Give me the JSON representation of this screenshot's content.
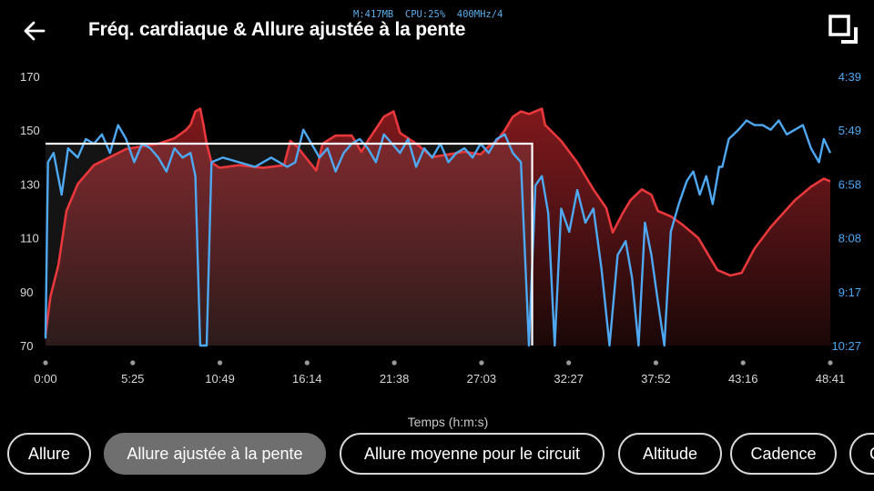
{
  "header": {
    "title": "Fréq. cardiaque & Allure ajustée à la pente",
    "debug": "M:417MB  CPU:25%  400MHz/4"
  },
  "colors": {
    "hr": "#e8383c",
    "pace": "#4ea8f2",
    "lap": "#ffffff",
    "axis_right": "#4ea8f2"
  },
  "chart_data": {
    "type": "area",
    "x_unit": "minutes",
    "xlabel": "Temps (h:m:s)",
    "x_ticks": [
      "0:00",
      "5:25",
      "10:49",
      "16:14",
      "21:38",
      "27:03",
      "32:27",
      "37:52",
      "43:16",
      "48:41"
    ],
    "y_left_ticks": [
      "170",
      "150",
      "130",
      "110",
      "90",
      "70"
    ],
    "y_left_range": [
      70,
      170
    ],
    "y_right_ticks": [
      "4:39",
      "5:49",
      "6:58",
      "8:08",
      "9:17",
      "10:27"
    ],
    "y_right_range_min_per_km": [
      4.65,
      10.45
    ],
    "lap_marker": {
      "x_end_min": 30.2,
      "hr": 145
    },
    "series": [
      {
        "id": "hr",
        "points": [
          [
            0,
            74
          ],
          [
            0.3,
            88
          ],
          [
            0.8,
            100
          ],
          [
            1.3,
            120
          ],
          [
            2,
            130
          ],
          [
            3,
            137
          ],
          [
            4,
            140
          ],
          [
            5,
            143
          ],
          [
            6,
            144
          ],
          [
            7,
            145
          ],
          [
            8,
            147
          ],
          [
            8.7,
            150
          ],
          [
            9,
            152
          ],
          [
            9.3,
            157
          ],
          [
            9.6,
            158
          ],
          [
            9.8,
            152
          ],
          [
            10,
            145
          ],
          [
            10.3,
            138
          ],
          [
            10.8,
            136
          ],
          [
            12,
            137
          ],
          [
            13.5,
            136
          ],
          [
            14.8,
            137
          ],
          [
            15.2,
            146
          ],
          [
            15.6,
            144
          ],
          [
            16,
            141
          ],
          [
            16.8,
            135
          ],
          [
            17.2,
            145
          ],
          [
            18,
            148
          ],
          [
            19,
            148
          ],
          [
            19.6,
            142
          ],
          [
            20,
            146
          ],
          [
            21,
            155
          ],
          [
            21.6,
            157
          ],
          [
            22,
            149
          ],
          [
            23,
            145
          ],
          [
            24,
            140
          ],
          [
            25,
            141
          ],
          [
            26,
            142
          ],
          [
            27,
            141
          ],
          [
            27.5,
            144
          ],
          [
            28,
            146
          ],
          [
            28.5,
            150
          ],
          [
            29,
            155
          ],
          [
            29.5,
            157
          ],
          [
            30,
            156
          ],
          [
            30.8,
            158
          ],
          [
            31,
            152
          ],
          [
            32,
            146
          ],
          [
            33,
            138
          ],
          [
            34,
            128
          ],
          [
            34.8,
            121
          ],
          [
            35.2,
            112
          ],
          [
            35.8,
            119
          ],
          [
            36.3,
            124
          ],
          [
            37,
            128
          ],
          [
            37.6,
            126
          ],
          [
            38,
            120
          ],
          [
            38.8,
            118
          ],
          [
            39.5,
            115
          ],
          [
            40.5,
            110
          ],
          [
            41.2,
            103
          ],
          [
            41.7,
            98
          ],
          [
            42.5,
            96
          ],
          [
            43.2,
            97
          ],
          [
            44,
            106
          ],
          [
            45,
            114
          ],
          [
            46.5,
            124
          ],
          [
            47.5,
            129
          ],
          [
            48.3,
            132
          ],
          [
            48.7,
            131
          ]
        ]
      },
      {
        "id": "pace",
        "points": [
          [
            0,
            10.3
          ],
          [
            0.15,
            6.5
          ],
          [
            0.5,
            6.3
          ],
          [
            1,
            7.2
          ],
          [
            1.4,
            6.2
          ],
          [
            2,
            6.4
          ],
          [
            2.5,
            6.0
          ],
          [
            3,
            6.1
          ],
          [
            3.5,
            5.9
          ],
          [
            4,
            6.3
          ],
          [
            4.5,
            5.7
          ],
          [
            5,
            6.0
          ],
          [
            5.5,
            6.5
          ],
          [
            6,
            6.1
          ],
          [
            6.5,
            6.2
          ],
          [
            7,
            6.4
          ],
          [
            7.5,
            6.7
          ],
          [
            8,
            6.2
          ],
          [
            8.5,
            6.4
          ],
          [
            9,
            6.3
          ],
          [
            9.3,
            6.8
          ],
          [
            9.6,
            10.45
          ],
          [
            10,
            10.45
          ],
          [
            10.3,
            6.5
          ],
          [
            11,
            6.4
          ],
          [
            12,
            6.5
          ],
          [
            13,
            6.6
          ],
          [
            14,
            6.4
          ],
          [
            15,
            6.6
          ],
          [
            15.5,
            6.5
          ],
          [
            16,
            5.8
          ],
          [
            16.5,
            6.1
          ],
          [
            17,
            6.4
          ],
          [
            17.5,
            6.2
          ],
          [
            18,
            6.7
          ],
          [
            18.5,
            6.3
          ],
          [
            19,
            6.1
          ],
          [
            19.5,
            6.0
          ],
          [
            20,
            6.2
          ],
          [
            20.5,
            6.5
          ],
          [
            21,
            5.9
          ],
          [
            21.5,
            6.1
          ],
          [
            22,
            6.3
          ],
          [
            22.5,
            6.0
          ],
          [
            23,
            6.6
          ],
          [
            23.5,
            6.2
          ],
          [
            24,
            6.4
          ],
          [
            24.5,
            6.1
          ],
          [
            25,
            6.5
          ],
          [
            25.5,
            6.3
          ],
          [
            26,
            6.2
          ],
          [
            26.5,
            6.4
          ],
          [
            27,
            6.1
          ],
          [
            27.5,
            6.3
          ],
          [
            28,
            6.0
          ],
          [
            28.5,
            5.9
          ],
          [
            29,
            6.3
          ],
          [
            29.5,
            6.5
          ],
          [
            30,
            10.45
          ],
          [
            30.4,
            7.0
          ],
          [
            30.8,
            6.8
          ],
          [
            31.2,
            7.6
          ],
          [
            31.6,
            10.45
          ],
          [
            32,
            7.5
          ],
          [
            32.5,
            8.0
          ],
          [
            33,
            7.1
          ],
          [
            33.5,
            7.8
          ],
          [
            34,
            7.5
          ],
          [
            34.5,
            8.8
          ],
          [
            35,
            10.45
          ],
          [
            35.5,
            8.5
          ],
          [
            36,
            8.2
          ],
          [
            36.4,
            9.0
          ],
          [
            36.8,
            10.45
          ],
          [
            37.2,
            7.8
          ],
          [
            37.6,
            8.5
          ],
          [
            38,
            9.5
          ],
          [
            38.4,
            10.45
          ],
          [
            38.8,
            8.0
          ],
          [
            39.3,
            7.4
          ],
          [
            39.8,
            6.9
          ],
          [
            40.2,
            6.7
          ],
          [
            40.6,
            7.2
          ],
          [
            41,
            6.8
          ],
          [
            41.4,
            7.4
          ],
          [
            41.8,
            6.6
          ],
          [
            42,
            6.6
          ],
          [
            42.4,
            6.0
          ],
          [
            43,
            5.8
          ],
          [
            43.5,
            5.6
          ],
          [
            44,
            5.7
          ],
          [
            44.5,
            5.7
          ],
          [
            45,
            5.8
          ],
          [
            45.5,
            5.6
          ],
          [
            46,
            5.9
          ],
          [
            46.5,
            5.8
          ],
          [
            47,
            5.7
          ],
          [
            47.5,
            6.2
          ],
          [
            48,
            6.5
          ],
          [
            48.3,
            6.0
          ],
          [
            48.7,
            6.3
          ]
        ]
      }
    ]
  },
  "tabs": [
    {
      "label": "Allure",
      "active": false
    },
    {
      "label": "Allure ajustée à la pente",
      "active": true
    },
    {
      "label": "Allure moyenne pour le circuit",
      "active": false
    },
    {
      "label": "Altitude",
      "active": false
    },
    {
      "label": "Cadence",
      "active": false
    },
    {
      "label": "C",
      "active": false
    }
  ]
}
